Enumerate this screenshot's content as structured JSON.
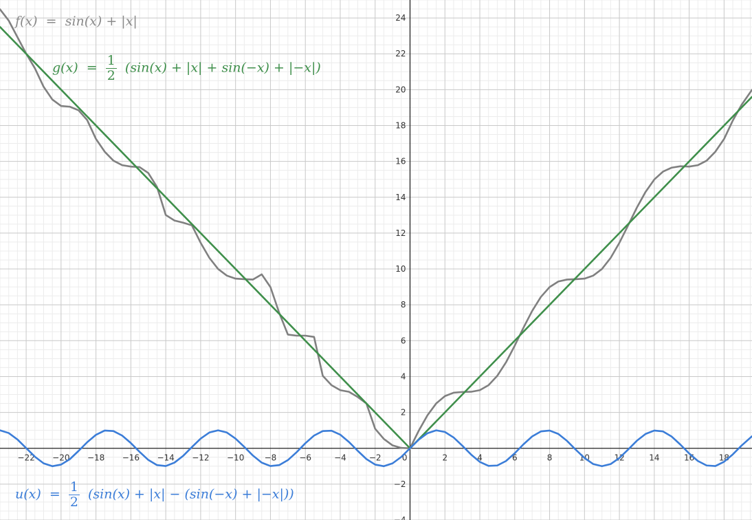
{
  "chart_data": {
    "type": "line",
    "xlim": [
      -23.5,
      19.6
    ],
    "ylim": [
      -4.0,
      25.0
    ],
    "x_ticks": [
      -22,
      -20,
      -18,
      -16,
      -14,
      -12,
      -10,
      -8,
      -6,
      -4,
      -2,
      0,
      2,
      4,
      6,
      8,
      10,
      12,
      14,
      16,
      18
    ],
    "x_tick_labels": [
      "−22",
      "−20",
      "−18",
      "−16",
      "−14",
      "−12",
      "−10",
      "−8",
      "−6",
      "−4",
      "−2",
      "0",
      "2",
      "4",
      "6",
      "8",
      "10",
      "12",
      "14",
      "16",
      "18"
    ],
    "y_ticks": [
      -4,
      -2,
      2,
      4,
      6,
      8,
      10,
      12,
      14,
      16,
      18,
      20,
      22,
      24
    ],
    "y_tick_labels": [
      "−4",
      "−2",
      "2",
      "4",
      "6",
      "8",
      "10",
      "12",
      "14",
      "16",
      "18",
      "20",
      "22",
      "24"
    ],
    "grid": true,
    "minor_grid": true,
    "series": [
      {
        "name": "f",
        "color": "#808080",
        "label_lhs": "f(x)",
        "label_eq": "=",
        "label_rhs": "sin(x) + |x|",
        "x": [
          -23.5,
          -23,
          -22.5,
          -22,
          -21.5,
          -21,
          -20.5,
          -20,
          -19.5,
          -19,
          -18.5,
          -18,
          -17.5,
          -17,
          -16.5,
          -16,
          -15.5,
          -15,
          -14.5,
          -14,
          -13.5,
          -13,
          -12.5,
          -12,
          -11.5,
          -11,
          -10.5,
          -10,
          -9.5,
          -9,
          -8.5,
          -8,
          -7.5,
          -7,
          -6.5,
          -6,
          -5.5,
          -5,
          -4.5,
          -4,
          -3.5,
          -3,
          -2.5,
          -2,
          -1.5,
          -1,
          -0.5,
          0,
          0.5,
          1,
          1.5,
          2,
          2.5,
          3,
          3.5,
          4,
          4.5,
          5,
          5.5,
          6,
          6.5,
          7,
          7.5,
          8,
          8.5,
          9,
          9.5,
          10,
          10.5,
          11,
          11.5,
          12,
          12.5,
          13,
          13.5,
          14,
          14.5,
          15,
          15.5,
          16,
          16.5,
          17,
          17.5,
          18,
          18.5,
          19,
          19.6
        ],
        "y": [
          24.48,
          23.85,
          22.93,
          22.01,
          21.19,
          20.16,
          19.45,
          19.09,
          19.05,
          18.85,
          18.3,
          17.25,
          16.54,
          16.04,
          15.79,
          15.71,
          15.68,
          15.35,
          14.57,
          13.01,
          12.7,
          12.58,
          12.43,
          11.46,
          10.62,
          10.0,
          9.63,
          9.46,
          9.43,
          9.41,
          9.7,
          8.99,
          7.56,
          6.34,
          6.28,
          6.28,
          6.21,
          4.04,
          3.52,
          3.24,
          3.15,
          2.86,
          2.5,
          1.09,
          0.52,
          0.16,
          0.02,
          0.0,
          0.98,
          1.84,
          2.5,
          2.91,
          3.1,
          3.14,
          3.15,
          3.24,
          3.52,
          4.04,
          4.79,
          5.72,
          6.72,
          7.66,
          8.44,
          8.99,
          9.3,
          9.41,
          9.43,
          9.46,
          9.63,
          10.0,
          10.62,
          11.46,
          12.43,
          13.42,
          14.3,
          14.99,
          15.43,
          15.65,
          15.73,
          15.71,
          15.79,
          16.04,
          16.54,
          17.25,
          18.28,
          19.15,
          19.99
        ]
      },
      {
        "name": "g",
        "color": "#3f8f4b",
        "label_lhs": "g(x)",
        "label_eq": "=",
        "label_num": "1",
        "label_den": "2",
        "label_rhs": "(sin(x) + |x| + sin(−x) + |−x|)",
        "x": [
          -23.5,
          0,
          19.6
        ],
        "y": [
          23.5,
          0,
          19.6
        ]
      },
      {
        "name": "u",
        "color": "#3b7dd8",
        "label_lhs": "u(x)",
        "label_eq": "=",
        "label_num": "1",
        "label_den": "2",
        "label_rhs": "(sin(x) + |x| − (sin(−x) + |−x|))",
        "x": [
          -23.5,
          -23,
          -22.5,
          -22,
          -21.5,
          -21,
          -20.5,
          -20,
          -19.5,
          -19,
          -18.5,
          -18,
          -17.5,
          -17,
          -16.5,
          -16,
          -15.5,
          -15,
          -14.5,
          -14,
          -13.5,
          -13,
          -12.5,
          -12,
          -11.5,
          -11,
          -10.5,
          -10,
          -9.5,
          -9,
          -8.5,
          -8,
          -7.5,
          -7,
          -6.5,
          -6,
          -5.5,
          -5,
          -4.5,
          -4,
          -3.5,
          -3,
          -2.5,
          -2,
          -1.5,
          -1,
          -0.5,
          0,
          0.5,
          1,
          1.5,
          2,
          2.5,
          3,
          3.5,
          4,
          4.5,
          5,
          5.5,
          6,
          6.5,
          7,
          7.5,
          8,
          8.5,
          9,
          9.5,
          10,
          10.5,
          11,
          11.5,
          12,
          12.5,
          13,
          13.5,
          14,
          14.5,
          15,
          15.5,
          16,
          16.5,
          17,
          17.5,
          18,
          18.5,
          19,
          19.6
        ],
        "y": [
          1.0,
          0.85,
          0.49,
          0.01,
          -0.47,
          -0.84,
          -1.0,
          -0.91,
          -0.61,
          -0.15,
          0.34,
          0.75,
          0.99,
          0.96,
          0.71,
          0.29,
          -0.2,
          -0.65,
          -0.94,
          -0.99,
          -0.8,
          -0.42,
          0.07,
          0.54,
          0.88,
          1.0,
          0.88,
          0.54,
          0.08,
          -0.41,
          -0.8,
          -0.99,
          -0.94,
          -0.66,
          -0.22,
          0.28,
          0.71,
          0.96,
          0.98,
          0.76,
          0.35,
          -0.14,
          -0.6,
          -0.91,
          -1.0,
          -0.84,
          -0.48,
          0.0,
          0.48,
          0.84,
          1.0,
          0.91,
          0.6,
          0.14,
          -0.35,
          -0.76,
          -0.98,
          -0.96,
          -0.71,
          -0.28,
          0.22,
          0.66,
          0.94,
          0.99,
          0.8,
          0.41,
          -0.08,
          -0.54,
          -0.88,
          -1.0,
          -0.88,
          -0.54,
          -0.07,
          0.42,
          0.8,
          0.99,
          0.94,
          0.65,
          0.2,
          -0.29,
          -0.71,
          -0.96,
          -0.99,
          -0.75,
          -0.34,
          0.15,
          0.67
        ]
      }
    ]
  }
}
